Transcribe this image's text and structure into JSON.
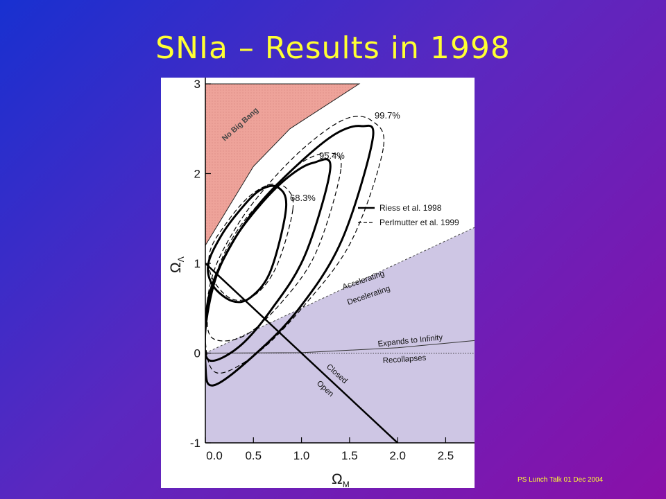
{
  "slide": {
    "title": "SNIa – Results in 1998",
    "footer": "PS Lunch Talk 01 Dec 2004"
  },
  "chart_data": {
    "type": "line",
    "xlabel_main": "Ω",
    "xlabel_sub": "M",
    "ylabel_main": "Ω",
    "ylabel_sub": "Λ",
    "xlim": [
      0,
      2.8
    ],
    "ylim": [
      -1,
      3
    ],
    "x_ticks": [
      "0.0",
      "0.5",
      "1.0",
      "1.5",
      "2.0",
      "2.5"
    ],
    "y_ticks": [
      "-1",
      "0",
      "1",
      "2",
      "3"
    ],
    "legend": [
      {
        "name": "Riess et al. 1998",
        "style": "solid"
      },
      {
        "name": "Perlmutter et al. 1999",
        "style": "dashed"
      }
    ],
    "confidence_labels": [
      "68.3%",
      "95.4%",
      "99.7%"
    ],
    "region_labels": {
      "no_big_bang": "No Big Bang",
      "accelerating": "Accelerating",
      "decelerating": "Decelerating",
      "expands": "Expands to Infinity",
      "recollapses": "Recollapses",
      "closed": "Closed",
      "open": "Open"
    },
    "lines": {
      "flat_universe": [
        [
          0,
          1
        ],
        [
          2,
          -1
        ]
      ],
      "acceleration_boundary": [
        [
          0,
          0
        ],
        [
          2.8,
          1.4
        ]
      ],
      "expansion_boundary": [
        [
          0,
          0
        ],
        [
          1.0,
          0.005
        ],
        [
          2.0,
          0.06
        ],
        [
          2.8,
          0.14
        ]
      ],
      "recollapse_boundary": [
        [
          0,
          0
        ],
        [
          2.8,
          0
        ]
      ],
      "no_big_bang_boundary": [
        [
          0,
          1.2
        ],
        [
          0.5,
          2.08
        ],
        [
          0.88,
          2.5
        ],
        [
          1.6,
          3.0
        ]
      ]
    },
    "contours_riess": [
      [
        [
          0.84,
          1.62
        ],
        [
          0.68,
          0.92
        ],
        [
          0.47,
          0.62
        ],
        [
          0.28,
          0.58
        ],
        [
          0.08,
          0.75
        ],
        [
          0.03,
          0.99
        ],
        [
          0.16,
          1.3
        ],
        [
          0.35,
          1.58
        ],
        [
          0.56,
          1.81
        ],
        [
          0.75,
          1.85
        ]
      ],
      [
        [
          1.3,
          2.06
        ],
        [
          1.04,
          1.1
        ],
        [
          0.69,
          0.49
        ],
        [
          0.35,
          0.07
        ],
        [
          0.04,
          -0.08
        ],
        [
          0.0,
          0.25
        ],
        [
          0.1,
          0.81
        ],
        [
          0.29,
          1.25
        ],
        [
          0.57,
          1.65
        ],
        [
          0.86,
          1.96
        ],
        [
          1.12,
          2.12
        ]
      ],
      [
        [
          1.74,
          2.38
        ],
        [
          1.42,
          1.26
        ],
        [
          0.97,
          0.49
        ],
        [
          0.49,
          -0.04
        ],
        [
          0.08,
          -0.36
        ],
        [
          0.0,
          -0.11
        ],
        [
          0.03,
          0.6
        ],
        [
          0.24,
          1.15
        ],
        [
          0.56,
          1.66
        ],
        [
          0.97,
          2.11
        ],
        [
          1.35,
          2.44
        ],
        [
          1.62,
          2.53
        ]
      ]
    ],
    "contours_perlmutter": [
      [
        [
          0.91,
          1.6
        ],
        [
          0.75,
          0.99
        ],
        [
          0.53,
          0.66
        ],
        [
          0.28,
          0.6
        ],
        [
          0.07,
          0.84
        ],
        [
          0.05,
          1.14
        ],
        [
          0.22,
          1.45
        ],
        [
          0.45,
          1.74
        ],
        [
          0.68,
          1.88
        ],
        [
          0.85,
          1.83
        ]
      ],
      [
        [
          1.41,
          2.05
        ],
        [
          1.15,
          1.12
        ],
        [
          0.78,
          0.55
        ],
        [
          0.4,
          0.19
        ],
        [
          0.07,
          0.17
        ],
        [
          0.03,
          0.51
        ],
        [
          0.16,
          1.02
        ],
        [
          0.38,
          1.44
        ],
        [
          0.68,
          1.8
        ],
        [
          0.98,
          2.11
        ],
        [
          1.28,
          2.23
        ]
      ],
      [
        [
          1.85,
          2.28
        ],
        [
          1.52,
          1.25
        ],
        [
          1.02,
          0.52
        ],
        [
          0.54,
          0.0
        ],
        [
          0.12,
          -0.22
        ],
        [
          0.0,
          0.15
        ],
        [
          0.06,
          0.81
        ],
        [
          0.29,
          1.35
        ],
        [
          0.63,
          1.85
        ],
        [
          1.05,
          2.31
        ],
        [
          1.46,
          2.61
        ],
        [
          1.73,
          2.59
        ]
      ]
    ]
  }
}
